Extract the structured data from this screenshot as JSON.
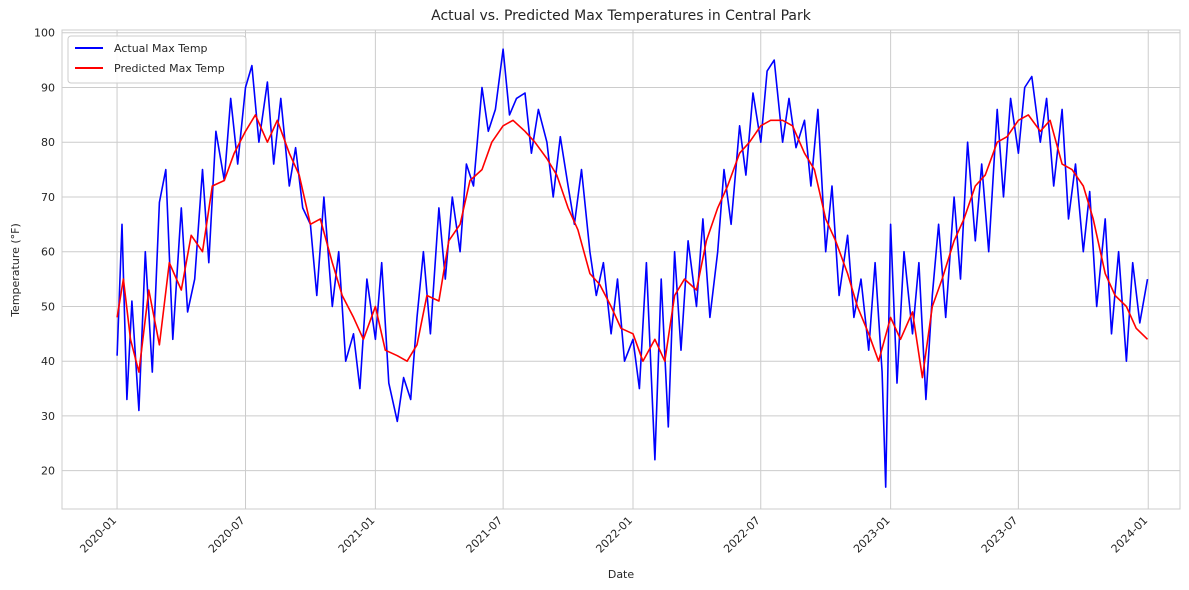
{
  "chart_data": {
    "type": "line",
    "title": "Actual vs. Predicted Max Temperatures in Central Park",
    "xlabel": "Date",
    "ylabel": "Temperature (°F)",
    "x_range": [
      "2019-10-15",
      "2024-02-15"
    ],
    "ylim": [
      13,
      100.5
    ],
    "y_ticks": [
      20,
      30,
      40,
      50,
      60,
      70,
      80,
      90,
      100
    ],
    "x_ticks": [
      "2020-01",
      "2020-07",
      "2021-01",
      "2021-07",
      "2022-01",
      "2022-07",
      "2023-01",
      "2023-07",
      "2024-01"
    ],
    "grid": true,
    "legend_position": "top-left",
    "series": [
      {
        "name": "Actual Max Temp",
        "color": "#0000ff",
        "x": [
          "2020-01-01",
          "2020-01-08",
          "2020-01-15",
          "2020-01-22",
          "2020-02-01",
          "2020-02-10",
          "2020-02-20",
          "2020-03-01",
          "2020-03-10",
          "2020-03-20",
          "2020-04-01",
          "2020-04-10",
          "2020-04-20",
          "2020-05-01",
          "2020-05-10",
          "2020-05-20",
          "2020-06-01",
          "2020-06-10",
          "2020-06-20",
          "2020-07-01",
          "2020-07-10",
          "2020-07-20",
          "2020-08-01",
          "2020-08-10",
          "2020-08-20",
          "2020-09-01",
          "2020-09-10",
          "2020-09-20",
          "2020-10-01",
          "2020-10-10",
          "2020-10-20",
          "2020-11-01",
          "2020-11-10",
          "2020-11-20",
          "2020-12-01",
          "2020-12-10",
          "2020-12-20",
          "2021-01-01",
          "2021-01-10",
          "2021-01-20",
          "2021-02-01",
          "2021-02-10",
          "2021-02-20",
          "2021-03-01",
          "2021-03-10",
          "2021-03-20",
          "2021-04-01",
          "2021-04-10",
          "2021-04-20",
          "2021-05-01",
          "2021-05-10",
          "2021-05-20",
          "2021-06-01",
          "2021-06-10",
          "2021-06-20",
          "2021-07-01",
          "2021-07-10",
          "2021-07-20",
          "2021-08-01",
          "2021-08-10",
          "2021-08-20",
          "2021-09-01",
          "2021-09-10",
          "2021-09-20",
          "2021-10-01",
          "2021-10-10",
          "2021-10-20",
          "2021-11-01",
          "2021-11-10",
          "2021-11-20",
          "2021-12-01",
          "2021-12-10",
          "2021-12-20",
          "2022-01-01",
          "2022-01-10",
          "2022-01-20",
          "2022-02-01",
          "2022-02-10",
          "2022-02-20",
          "2022-03-01",
          "2022-03-10",
          "2022-03-20",
          "2022-04-01",
          "2022-04-10",
          "2022-04-20",
          "2022-05-01",
          "2022-05-10",
          "2022-05-20",
          "2022-06-01",
          "2022-06-10",
          "2022-06-20",
          "2022-07-01",
          "2022-07-10",
          "2022-07-20",
          "2022-08-01",
          "2022-08-10",
          "2022-08-20",
          "2022-09-01",
          "2022-09-10",
          "2022-09-20",
          "2022-10-01",
          "2022-10-10",
          "2022-10-20",
          "2022-11-01",
          "2022-11-10",
          "2022-11-20",
          "2022-12-01",
          "2022-12-10",
          "2022-12-20",
          "2022-12-25",
          "2023-01-01",
          "2023-01-10",
          "2023-01-20",
          "2023-02-01",
          "2023-02-10",
          "2023-02-20",
          "2023-03-01",
          "2023-03-10",
          "2023-03-20",
          "2023-04-01",
          "2023-04-10",
          "2023-04-20",
          "2023-05-01",
          "2023-05-10",
          "2023-05-20",
          "2023-06-01",
          "2023-06-10",
          "2023-06-20",
          "2023-07-01",
          "2023-07-10",
          "2023-07-20",
          "2023-08-01",
          "2023-08-10",
          "2023-08-20",
          "2023-09-01",
          "2023-09-10",
          "2023-09-20",
          "2023-10-01",
          "2023-10-10",
          "2023-10-20",
          "2023-11-01",
          "2023-11-10",
          "2023-11-20",
          "2023-12-01",
          "2023-12-10",
          "2023-12-20",
          "2023-12-31"
        ],
        "values": [
          41,
          65,
          33,
          51,
          31,
          60,
          38,
          69,
          75,
          44,
          68,
          49,
          55,
          75,
          58,
          82,
          73,
          88,
          76,
          90,
          94,
          80,
          91,
          76,
          88,
          72,
          79,
          68,
          65,
          52,
          70,
          50,
          60,
          40,
          45,
          35,
          55,
          44,
          58,
          36,
          29,
          37,
          33,
          48,
          60,
          45,
          68,
          55,
          70,
          60,
          76,
          72,
          90,
          82,
          86,
          97,
          85,
          88,
          89,
          78,
          86,
          80,
          70,
          81,
          72,
          65,
          75,
          60,
          52,
          58,
          45,
          55,
          40,
          44,
          35,
          58,
          22,
          55,
          28,
          60,
          42,
          62,
          50,
          66,
          48,
          60,
          75,
          65,
          83,
          74,
          89,
          80,
          93,
          95,
          80,
          88,
          79,
          84,
          72,
          86,
          60,
          72,
          52,
          63,
          48,
          55,
          42,
          58,
          38,
          17,
          65,
          36,
          60,
          45,
          58,
          33,
          52,
          65,
          48,
          70,
          55,
          80,
          62,
          76,
          60,
          86,
          70,
          88,
          78,
          90,
          92,
          80,
          88,
          72,
          86,
          66,
          76,
          60,
          71,
          50,
          66,
          45,
          60,
          40,
          58,
          47,
          55
        ]
      },
      {
        "name": "Predicted Max Temp",
        "color": "#ff0000",
        "x": [
          "2020-01-01",
          "2020-01-10",
          "2020-01-20",
          "2020-02-01",
          "2020-02-15",
          "2020-03-01",
          "2020-03-15",
          "2020-04-01",
          "2020-04-15",
          "2020-05-01",
          "2020-05-15",
          "2020-06-01",
          "2020-06-15",
          "2020-07-01",
          "2020-07-15",
          "2020-08-01",
          "2020-08-15",
          "2020-09-01",
          "2020-09-15",
          "2020-10-01",
          "2020-10-15",
          "2020-11-01",
          "2020-11-15",
          "2020-12-01",
          "2020-12-15",
          "2021-01-01",
          "2021-01-15",
          "2021-02-01",
          "2021-02-15",
          "2021-03-01",
          "2021-03-15",
          "2021-04-01",
          "2021-04-15",
          "2021-05-01",
          "2021-05-15",
          "2021-06-01",
          "2021-06-15",
          "2021-07-01",
          "2021-07-15",
          "2021-08-01",
          "2021-08-15",
          "2021-09-01",
          "2021-09-15",
          "2021-10-01",
          "2021-10-15",
          "2021-11-01",
          "2021-11-15",
          "2021-12-01",
          "2021-12-15",
          "2022-01-01",
          "2022-01-15",
          "2022-02-01",
          "2022-02-15",
          "2022-03-01",
          "2022-03-15",
          "2022-04-01",
          "2022-04-15",
          "2022-05-01",
          "2022-05-15",
          "2022-06-01",
          "2022-06-15",
          "2022-07-01",
          "2022-07-15",
          "2022-08-01",
          "2022-08-15",
          "2022-09-01",
          "2022-09-15",
          "2022-10-01",
          "2022-10-15",
          "2022-11-01",
          "2022-11-15",
          "2022-12-01",
          "2022-12-15",
          "2023-01-01",
          "2023-01-15",
          "2023-02-01",
          "2023-02-15",
          "2023-03-01",
          "2023-03-15",
          "2023-04-01",
          "2023-04-15",
          "2023-05-01",
          "2023-05-15",
          "2023-06-01",
          "2023-06-15",
          "2023-07-01",
          "2023-07-15",
          "2023-08-01",
          "2023-08-15",
          "2023-09-01",
          "2023-09-15",
          "2023-10-01",
          "2023-10-15",
          "2023-11-01",
          "2023-11-15",
          "2023-12-01",
          "2023-12-15",
          "2023-12-31"
        ],
        "values": [
          48,
          55,
          44,
          38,
          53,
          43,
          58,
          53,
          63,
          60,
          72,
          73,
          78,
          82,
          85,
          80,
          84,
          78,
          74,
          65,
          66,
          58,
          52,
          48,
          44,
          50,
          42,
          41,
          40,
          43,
          52,
          51,
          62,
          65,
          73,
          75,
          80,
          83,
          84,
          82,
          80,
          77,
          74,
          68,
          64,
          56,
          54,
          50,
          46,
          45,
          40,
          44,
          40,
          52,
          55,
          53,
          62,
          68,
          72,
          78,
          80,
          83,
          84,
          84,
          83,
          78,
          75,
          66,
          62,
          56,
          50,
          45,
          40,
          48,
          44,
          49,
          37,
          50,
          55,
          62,
          66,
          72,
          74,
          80,
          81,
          84,
          85,
          82,
          84,
          76,
          75,
          72,
          66,
          56,
          52,
          50,
          46,
          44
        ]
      }
    ]
  }
}
